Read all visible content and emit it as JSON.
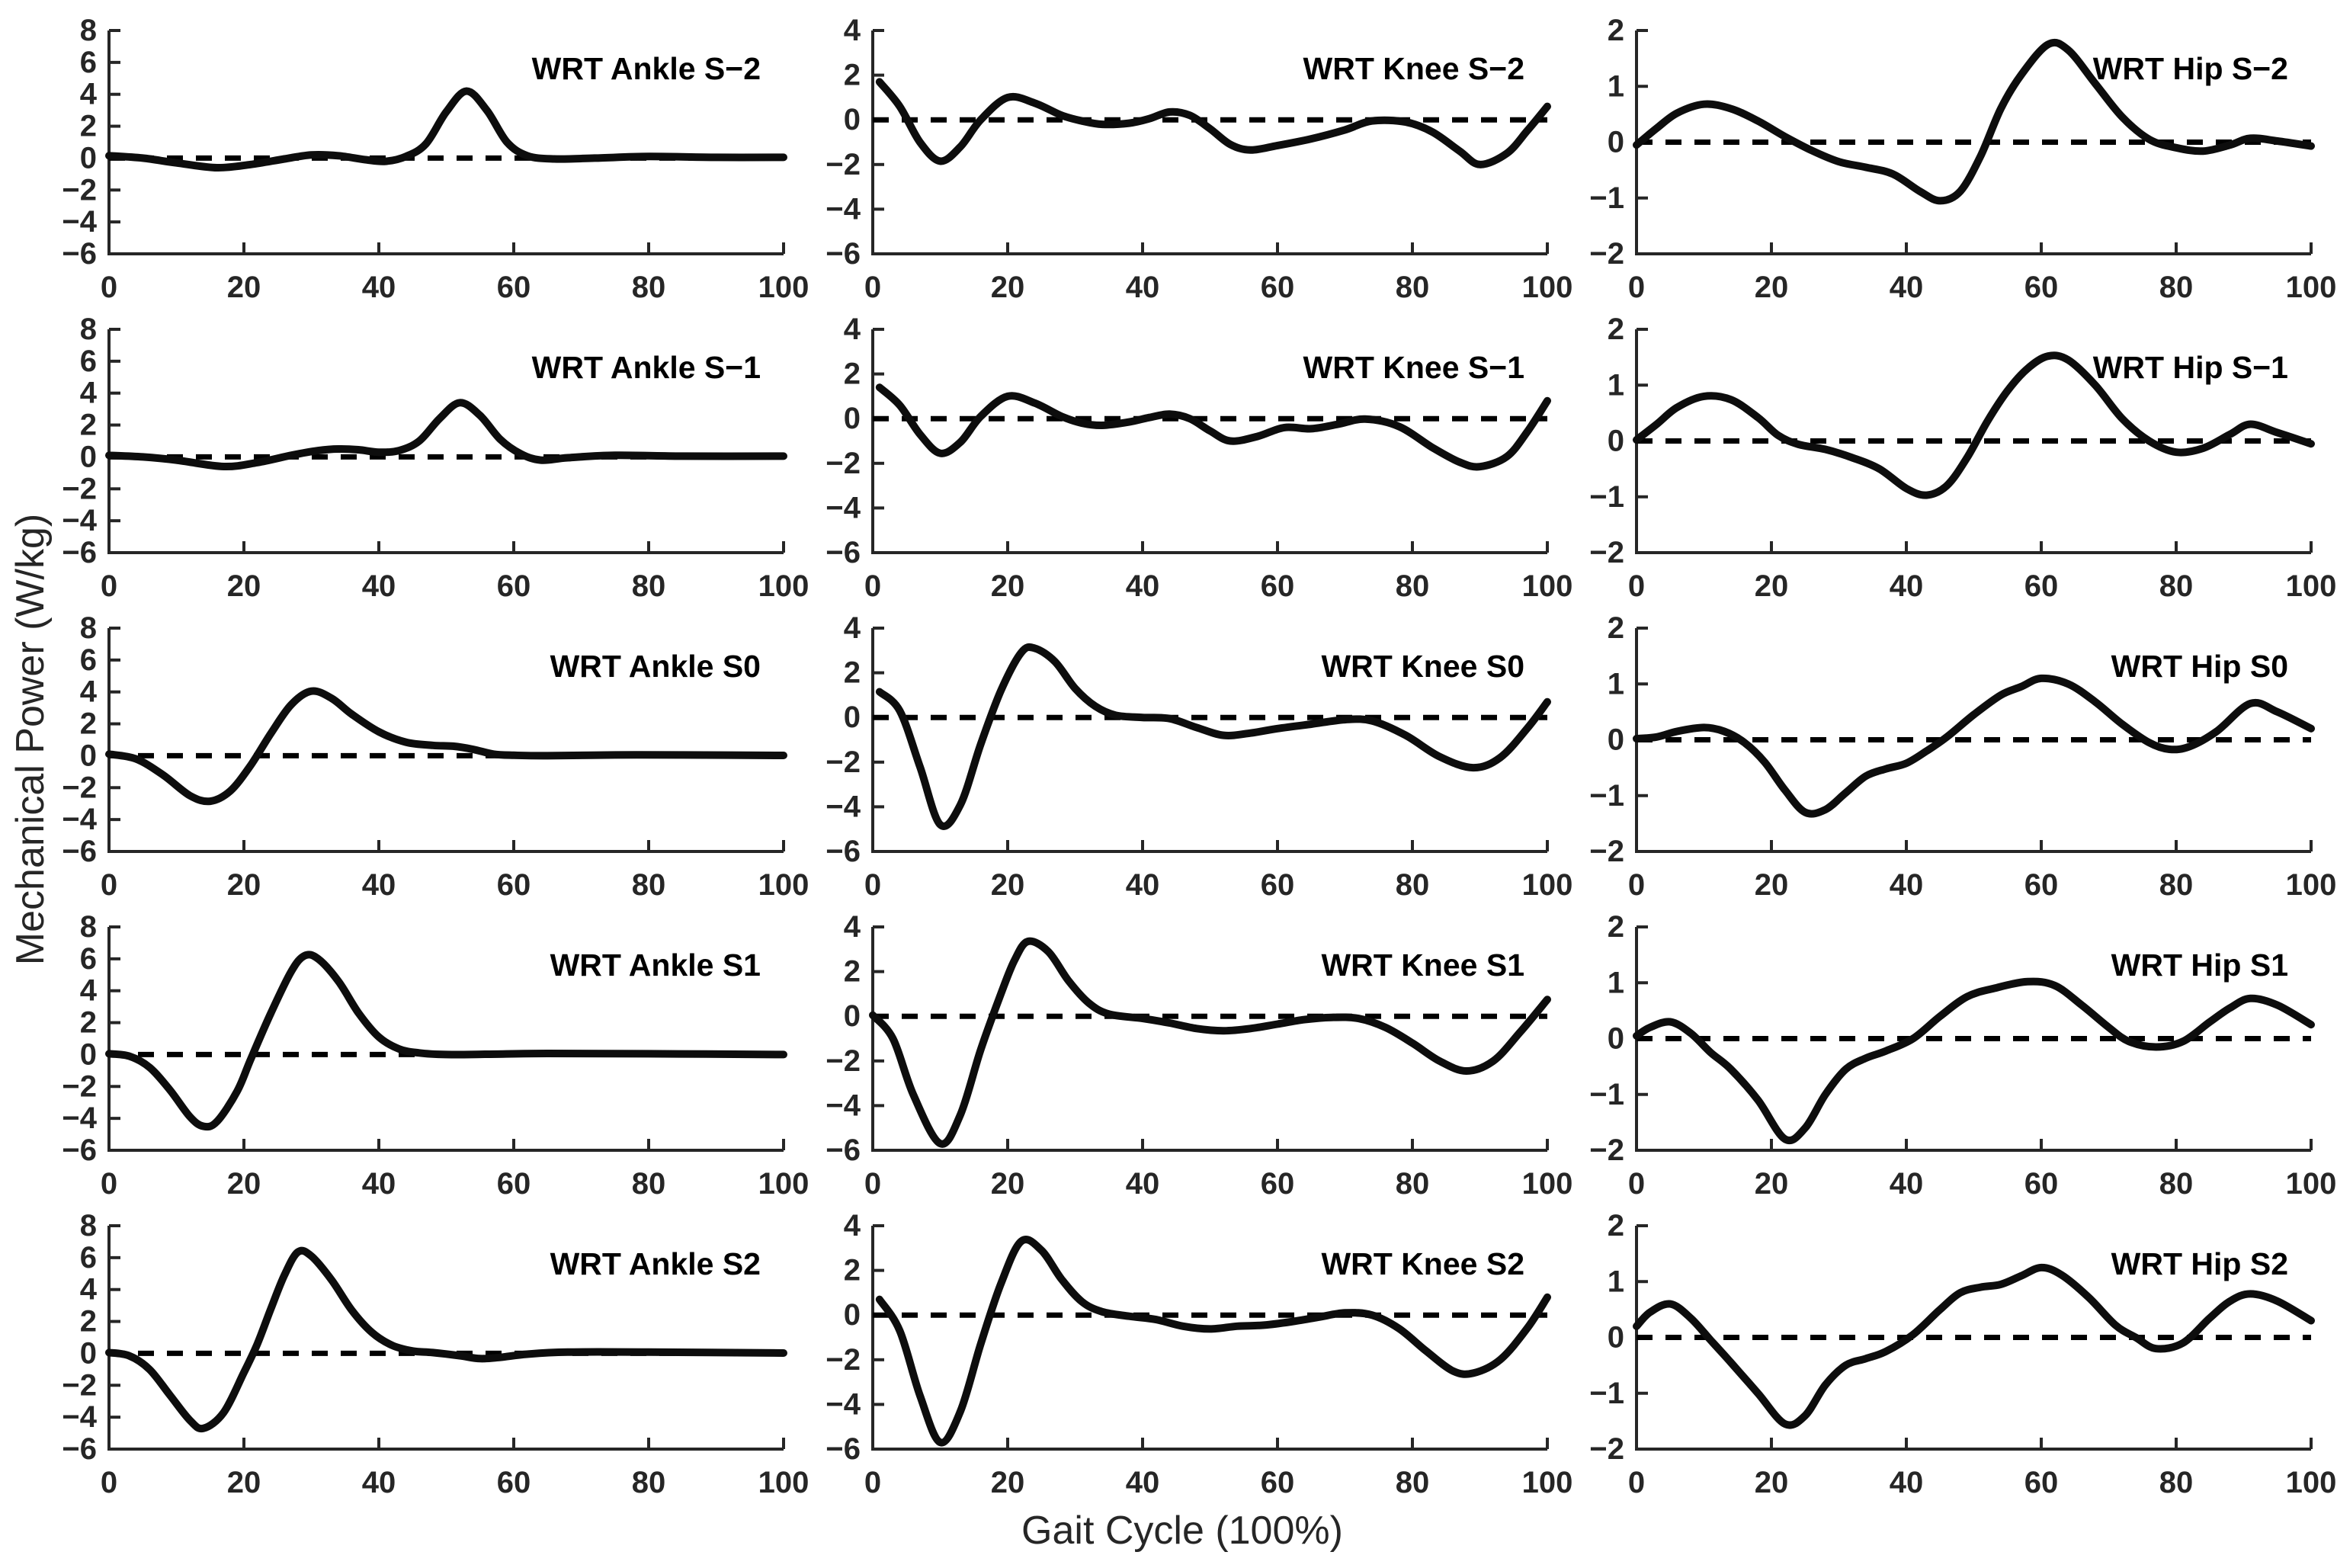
{
  "figure": {
    "ylabel": "Mechanical Power (W/kg)",
    "xlabel": "Gait Cycle (100%)",
    "colors": {
      "curve": "#0d0d0d",
      "axis": "#262626",
      "background": "#ffffff"
    }
  },
  "chart_data": {
    "type": "line",
    "layout": "5 rows (slopes S−2, S−1, S0, S1, S2) × 3 columns (Ankle, Knee, Hip)",
    "xlabel": "Gait Cycle (100%)",
    "ylabel": "Mechanical Power (W/kg)",
    "xlim": [
      0,
      100
    ],
    "xticks": [
      0,
      20,
      40,
      60,
      80,
      100
    ],
    "xtick_labels": [
      "0",
      "20",
      "40",
      "60",
      "80",
      "100"
    ],
    "grid_lines": false,
    "zero_line": "dashed black horizontal line at y=0 in every subplot",
    "column_axes": {
      "Ankle": {
        "ylim": [
          -6,
          8
        ],
        "yticks": [
          -6,
          -4,
          -2,
          0,
          2,
          4,
          6,
          8
        ],
        "ytick_labels": [
          "−6",
          "−4",
          "−2",
          "0",
          "2",
          "4",
          "6",
          "8"
        ]
      },
      "Knee": {
        "ylim": [
          -6,
          4
        ],
        "yticks": [
          -6,
          -4,
          -2,
          0,
          2,
          4
        ],
        "ytick_labels": [
          "−6",
          "−4",
          "−2",
          "0",
          "2",
          "4"
        ]
      },
      "Hip": {
        "ylim": [
          -2,
          2
        ],
        "yticks": [
          -2,
          -1,
          0,
          1,
          2
        ],
        "ytick_labels": [
          "−2",
          "−1",
          "0",
          "1",
          "2"
        ]
      }
    },
    "subplots": [
      {
        "row": 1,
        "col": 1,
        "joint": "Ankle",
        "title": "WRT Ankle S−2",
        "x": [
          0,
          5,
          10,
          16,
          21,
          26,
          30,
          34,
          38,
          41,
          44,
          47,
          50,
          53,
          56,
          59,
          62,
          66,
          72,
          80,
          90,
          100
        ],
        "y": [
          0.15,
          0.0,
          -0.3,
          -0.6,
          -0.4,
          -0.05,
          0.2,
          0.15,
          -0.1,
          -0.2,
          0.1,
          0.9,
          2.9,
          4.2,
          3.0,
          1.0,
          0.15,
          -0.05,
          0.0,
          0.1,
          0.05,
          0.05
        ]
      },
      {
        "row": 1,
        "col": 2,
        "joint": "Knee",
        "title": "WRT Knee S−2",
        "x": [
          1,
          4,
          7,
          10,
          13,
          16,
          20,
          24,
          28,
          31,
          34,
          38,
          41,
          44,
          47,
          50,
          53,
          56,
          60,
          65,
          70,
          74,
          79,
          83,
          87,
          90,
          94,
          97,
          100
        ],
        "y": [
          1.7,
          0.6,
          -1.0,
          -1.85,
          -1.2,
          0.0,
          1.0,
          0.75,
          0.2,
          -0.05,
          -0.2,
          -0.15,
          0.05,
          0.35,
          0.2,
          -0.4,
          -1.1,
          -1.35,
          -1.15,
          -0.85,
          -0.45,
          -0.05,
          -0.1,
          -0.55,
          -1.4,
          -2.0,
          -1.5,
          -0.5,
          0.6
        ]
      },
      {
        "row": 1,
        "col": 3,
        "joint": "Hip",
        "title": "WRT Hip S−2",
        "x": [
          0,
          3,
          6,
          10,
          14,
          18,
          22,
          26,
          30,
          34,
          38,
          42,
          45,
          48,
          51,
          54,
          57,
          61,
          64,
          68,
          72,
          76,
          80,
          84,
          88,
          91,
          95,
          100
        ],
        "y": [
          -0.05,
          0.25,
          0.52,
          0.68,
          0.6,
          0.38,
          0.1,
          -0.15,
          -0.35,
          -0.45,
          -0.57,
          -0.88,
          -1.05,
          -0.88,
          -0.25,
          0.6,
          1.2,
          1.75,
          1.65,
          1.05,
          0.45,
          0.05,
          -0.1,
          -0.16,
          -0.05,
          0.07,
          0.02,
          -0.07
        ]
      },
      {
        "row": 2,
        "col": 1,
        "joint": "Ankle",
        "title": "WRT Ankle S−1",
        "x": [
          0,
          5,
          10,
          17,
          22,
          27,
          31,
          34,
          37,
          40,
          43,
          46,
          49,
          52,
          55,
          58,
          61,
          64,
          68,
          75,
          85,
          100
        ],
        "y": [
          0.1,
          0.0,
          -0.2,
          -0.6,
          -0.35,
          0.1,
          0.4,
          0.5,
          0.45,
          0.3,
          0.4,
          1.0,
          2.4,
          3.4,
          2.6,
          1.1,
          0.2,
          -0.2,
          -0.05,
          0.1,
          0.05,
          0.05
        ]
      },
      {
        "row": 2,
        "col": 2,
        "joint": "Knee",
        "title": "WRT Knee S−1",
        "x": [
          1,
          4,
          7,
          10,
          13,
          16,
          20,
          24,
          28,
          31,
          34,
          38,
          41,
          44,
          47,
          50,
          53,
          57,
          61,
          65,
          69,
          73,
          78,
          83,
          87,
          90,
          94,
          97,
          100
        ],
        "y": [
          1.4,
          0.6,
          -0.7,
          -1.55,
          -1.05,
          0.1,
          1.0,
          0.7,
          0.1,
          -0.2,
          -0.3,
          -0.15,
          0.05,
          0.2,
          0.0,
          -0.55,
          -1.0,
          -0.8,
          -0.4,
          -0.45,
          -0.25,
          -0.02,
          -0.35,
          -1.3,
          -1.95,
          -2.15,
          -1.7,
          -0.6,
          0.8
        ]
      },
      {
        "row": 2,
        "col": 3,
        "joint": "Hip",
        "title": "WRT Hip S−1",
        "x": [
          0,
          3,
          6,
          10,
          14,
          18,
          21,
          24,
          28,
          32,
          36,
          40,
          43,
          46,
          49,
          52,
          55,
          58,
          61,
          64,
          68,
          72,
          76,
          80,
          84,
          88,
          91,
          95,
          100
        ],
        "y": [
          0.02,
          0.3,
          0.6,
          0.8,
          0.74,
          0.42,
          0.1,
          -0.06,
          -0.15,
          -0.3,
          -0.5,
          -0.85,
          -0.97,
          -0.8,
          -0.3,
          0.35,
          0.9,
          1.3,
          1.52,
          1.45,
          1.0,
          0.4,
          0.0,
          -0.2,
          -0.13,
          0.12,
          0.3,
          0.15,
          -0.05
        ]
      },
      {
        "row": 3,
        "col": 1,
        "joint": "Ankle",
        "title": "WRT Ankle S0",
        "x": [
          0,
          4,
          8,
          12,
          15,
          18,
          21,
          24,
          27,
          30,
          33,
          36,
          40,
          44,
          48,
          51,
          54,
          57,
          60,
          65,
          75,
          85,
          100
        ],
        "y": [
          0.1,
          -0.2,
          -1.2,
          -2.5,
          -2.85,
          -2.2,
          -0.6,
          1.4,
          3.2,
          4.05,
          3.6,
          2.6,
          1.5,
          0.85,
          0.65,
          0.6,
          0.4,
          0.1,
          0.03,
          0.0,
          0.05,
          0.05,
          0.02
        ]
      },
      {
        "row": 3,
        "col": 2,
        "joint": "Knee",
        "title": "WRT Knee S0",
        "x": [
          1,
          4,
          7,
          10,
          13,
          16,
          19,
          22,
          24,
          27,
          30,
          33,
          36,
          40,
          44,
          48,
          52,
          56,
          60,
          65,
          70,
          74,
          79,
          84,
          89,
          93,
          97,
          100
        ],
        "y": [
          1.15,
          0.3,
          -2.2,
          -4.8,
          -3.9,
          -1.2,
          1.2,
          2.9,
          3.1,
          2.5,
          1.3,
          0.5,
          0.1,
          0.0,
          -0.05,
          -0.45,
          -0.8,
          -0.7,
          -0.5,
          -0.3,
          -0.1,
          -0.15,
          -0.8,
          -1.75,
          -2.25,
          -1.8,
          -0.5,
          0.7
        ]
      },
      {
        "row": 3,
        "col": 3,
        "joint": "Hip",
        "title": "WRT Hip S0",
        "x": [
          0,
          3,
          6,
          10,
          13,
          16,
          19,
          22,
          25,
          28,
          31,
          34,
          37,
          40,
          43,
          46,
          50,
          54,
          57,
          60,
          64,
          68,
          72,
          76,
          79,
          82,
          86,
          91,
          95,
          100
        ],
        "y": [
          0.02,
          0.05,
          0.15,
          0.22,
          0.15,
          -0.05,
          -0.4,
          -0.9,
          -1.3,
          -1.25,
          -0.95,
          -0.65,
          -0.52,
          -0.42,
          -0.2,
          0.05,
          0.45,
          0.8,
          0.95,
          1.1,
          1.0,
          0.68,
          0.28,
          -0.05,
          -0.17,
          -0.12,
          0.15,
          0.65,
          0.5,
          0.2
        ]
      },
      {
        "row": 4,
        "col": 1,
        "joint": "Ankle",
        "title": "WRT Ankle S1",
        "x": [
          0,
          3,
          6,
          9,
          12,
          14,
          16,
          19,
          21,
          24,
          27,
          29,
          31,
          34,
          37,
          40,
          43,
          46,
          50,
          56,
          65,
          80,
          100
        ],
        "y": [
          0.05,
          -0.1,
          -0.8,
          -2.2,
          -3.9,
          -4.5,
          -4.2,
          -2.3,
          -0.3,
          2.6,
          5.2,
          6.2,
          6.0,
          4.6,
          2.6,
          1.1,
          0.35,
          0.1,
          0.0,
          0.02,
          0.07,
          0.05,
          0.0
        ]
      },
      {
        "row": 4,
        "col": 2,
        "joint": "Knee",
        "title": "WRT Knee S1",
        "x": [
          0,
          3,
          6,
          10,
          13,
          16,
          19,
          21,
          23,
          26,
          29,
          32,
          35,
          40,
          44,
          48,
          52,
          56,
          60,
          64,
          68,
          72,
          76,
          80,
          84,
          88,
          92,
          96,
          100
        ],
        "y": [
          0.05,
          -1.0,
          -3.5,
          -5.7,
          -4.4,
          -1.5,
          1.0,
          2.5,
          3.35,
          2.9,
          1.6,
          0.6,
          0.1,
          -0.1,
          -0.3,
          -0.55,
          -0.65,
          -0.55,
          -0.35,
          -0.15,
          -0.05,
          -0.1,
          -0.5,
          -1.2,
          -2.0,
          -2.45,
          -2.0,
          -0.7,
          0.75
        ]
      },
      {
        "row": 4,
        "col": 3,
        "joint": "Hip",
        "title": "WRT Hip S1",
        "x": [
          0,
          2,
          5,
          8,
          11,
          14,
          18,
          22,
          25,
          28,
          31,
          34,
          37,
          41,
          45,
          49,
          53,
          58,
          62,
          66,
          70,
          73,
          77,
          81,
          85,
          88,
          91,
          95,
          100
        ],
        "y": [
          0.05,
          0.2,
          0.3,
          0.1,
          -0.25,
          -0.55,
          -1.1,
          -1.8,
          -1.6,
          -1.0,
          -0.55,
          -0.35,
          -0.22,
          0.0,
          0.4,
          0.75,
          0.9,
          1.02,
          0.95,
          0.6,
          0.2,
          -0.05,
          -0.15,
          -0.05,
          0.3,
          0.55,
          0.72,
          0.6,
          0.25
        ]
      },
      {
        "row": 5,
        "col": 1,
        "joint": "Ankle",
        "title": "WRT Ankle S2",
        "x": [
          0,
          3,
          6,
          9,
          12,
          14,
          17,
          20,
          22,
          24,
          26,
          28,
          30,
          33,
          36,
          39,
          42,
          45,
          48,
          52,
          55,
          58,
          62,
          68,
          80,
          100
        ],
        "y": [
          0.05,
          -0.15,
          -1.0,
          -2.6,
          -4.2,
          -4.7,
          -3.7,
          -1.2,
          0.6,
          2.8,
          4.9,
          6.35,
          6.1,
          4.6,
          2.7,
          1.3,
          0.5,
          0.15,
          0.05,
          -0.15,
          -0.33,
          -0.25,
          -0.05,
          0.08,
          0.08,
          0.02
        ]
      },
      {
        "row": 5,
        "col": 2,
        "joint": "Knee",
        "title": "WRT Knee S2",
        "x": [
          1,
          4,
          7,
          10,
          13,
          16,
          19,
          22,
          25,
          28,
          31,
          34,
          38,
          42,
          46,
          50,
          54,
          58,
          62,
          66,
          70,
          74,
          78,
          82,
          86,
          89,
          93,
          97,
          100
        ],
        "y": [
          0.7,
          -0.7,
          -3.6,
          -5.7,
          -4.3,
          -1.3,
          1.4,
          3.3,
          2.9,
          1.6,
          0.6,
          0.15,
          -0.05,
          -0.2,
          -0.5,
          -0.62,
          -0.5,
          -0.45,
          -0.3,
          -0.1,
          0.1,
          0.0,
          -0.6,
          -1.6,
          -2.5,
          -2.6,
          -2.0,
          -0.6,
          0.8
        ]
      },
      {
        "row": 5,
        "col": 3,
        "joint": "Hip",
        "title": "WRT Hip S2",
        "x": [
          0,
          2,
          5,
          8,
          11,
          14,
          18,
          22,
          25,
          28,
          31,
          34,
          37,
          41,
          45,
          48,
          51,
          54,
          57,
          60,
          63,
          67,
          71,
          74,
          77,
          81,
          85,
          88,
          91,
          95,
          100
        ],
        "y": [
          0.2,
          0.45,
          0.6,
          0.35,
          -0.05,
          -0.45,
          -1.0,
          -1.55,
          -1.4,
          -0.85,
          -0.5,
          -0.38,
          -0.25,
          0.05,
          0.5,
          0.8,
          0.9,
          0.95,
          1.1,
          1.25,
          1.12,
          0.72,
          0.22,
          0.0,
          -0.2,
          -0.1,
          0.35,
          0.65,
          0.78,
          0.65,
          0.3
        ]
      }
    ]
  }
}
